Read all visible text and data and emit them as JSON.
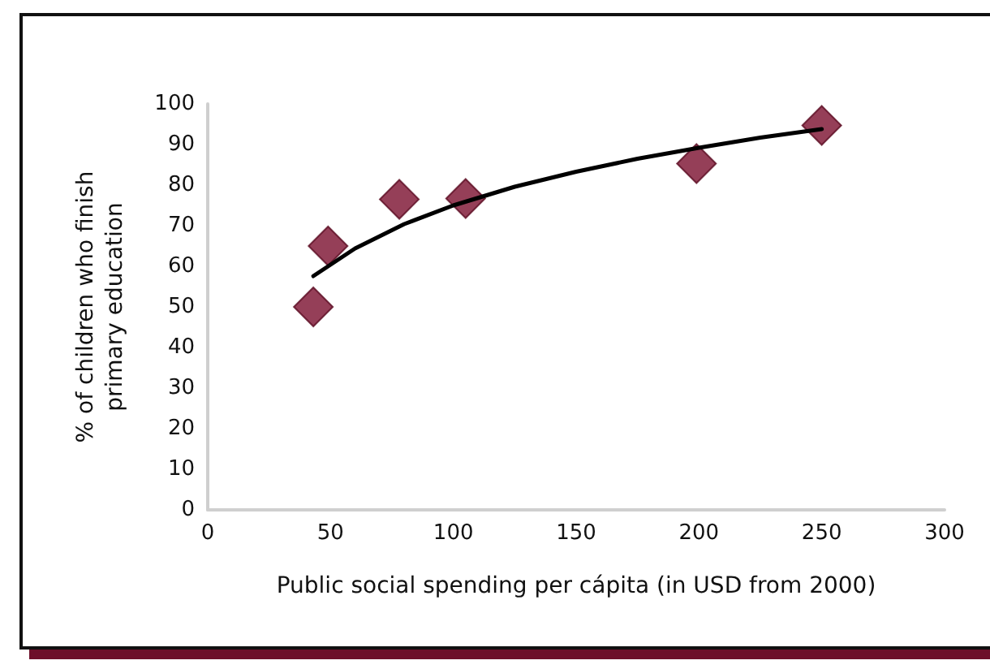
{
  "chart_data": {
    "type": "scatter",
    "xlabel": "Public social spending per cápita (in USD from 2000)",
    "ylabel": "% of children who finish primary education",
    "xlim": [
      0,
      300
    ],
    "xticks": [
      0,
      50,
      100,
      150,
      200,
      250,
      300
    ],
    "ylim": [
      0,
      100
    ],
    "yticks": [
      0,
      10,
      20,
      30,
      40,
      50,
      60,
      70,
      80,
      90,
      100
    ],
    "grid": false,
    "marker": "diamond",
    "series": [
      {
        "color": "#7a0f2e",
        "x": [
          43,
          49,
          78,
          105,
          199,
          250
        ],
        "values": [
          50,
          65,
          76.5,
          76.7,
          85.3,
          94.7
        ]
      },
      {
        "type": "line",
        "color": "#000000",
        "marker": "none",
        "line_style": "solid",
        "x": [
          43,
          60,
          80,
          100,
          125,
          150,
          175,
          200,
          225,
          250
        ],
        "values": [
          57.6,
          64.4,
          70.4,
          75.0,
          79.6,
          83.3,
          86.5,
          89.2,
          91.7,
          93.8
        ]
      }
    ]
  }
}
